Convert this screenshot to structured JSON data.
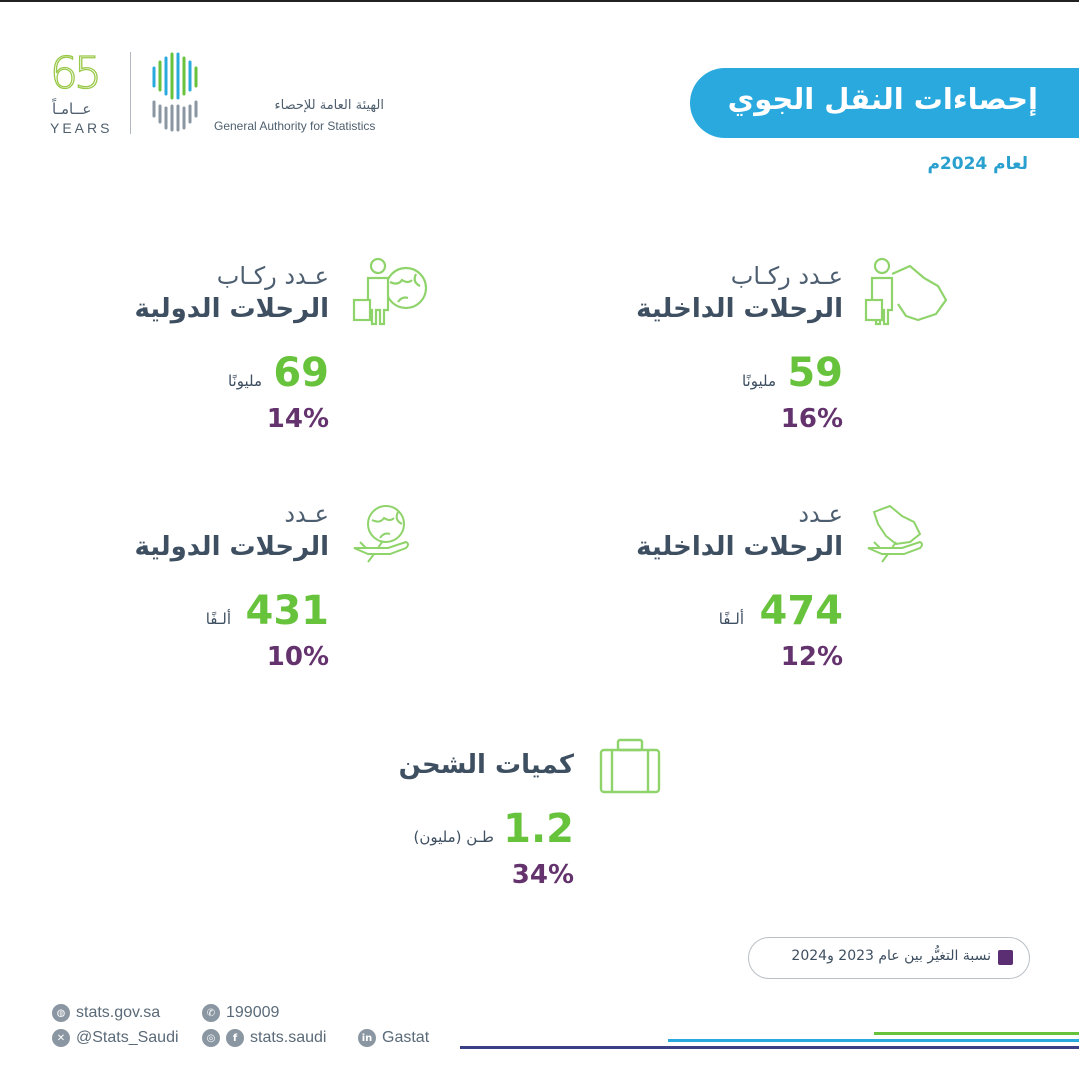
{
  "header": {
    "anniversary_number": "65",
    "anniversary_ar": "عــامـاً",
    "anniversary_en": "YEARS",
    "org_name_ar": "الهيئة العامة للإحصاء",
    "org_name_en": "General Authority for Statistics"
  },
  "title": "إحصاءات النقل الجوي",
  "subtitle": "لعام 2024م",
  "stats": {
    "domestic_passengers": {
      "label": "عـدد ركـاب",
      "heading": "الرحلات الداخلية",
      "value": "59",
      "unit": "مليونًا",
      "change": "16%",
      "icon": "passenger-saudi-map-icon"
    },
    "international_passengers": {
      "label": "عـدد ركـاب",
      "heading": "الرحلات الدولية",
      "value": "69",
      "unit": "مليونًا",
      "change": "14%",
      "icon": "passenger-globe-icon"
    },
    "domestic_flights": {
      "label": "عـدد",
      "heading": "الرحلات الداخلية",
      "value": "474",
      "unit": "ألـفًا",
      "change": "12%",
      "icon": "plane-saudi-map-icon"
    },
    "international_flights": {
      "label": "عـدد",
      "heading": "الرحلات الدولية",
      "value": "431",
      "unit": "ألـفًا",
      "change": "10%",
      "icon": "plane-globe-icon"
    },
    "cargo": {
      "heading": "كميات الشحن",
      "value": "1.2",
      "unit": "طـن (مليون)",
      "change": "34%",
      "icon": "cargo-box-icon"
    }
  },
  "legend": {
    "text": "نسبة التغيُّر بين عام 2023 و2024",
    "color": "#5b2d72"
  },
  "footer": {
    "website": "stats.gov.sa",
    "phone": "199009",
    "x_handle": "@Stats_Saudi",
    "social": "stats.saudi",
    "linkedin": "Gastat"
  },
  "colors": {
    "accent_blue": "#2aa9df",
    "value_green": "#67c33b",
    "change_purple": "#64336e",
    "text_dark": "#3e4f61"
  }
}
